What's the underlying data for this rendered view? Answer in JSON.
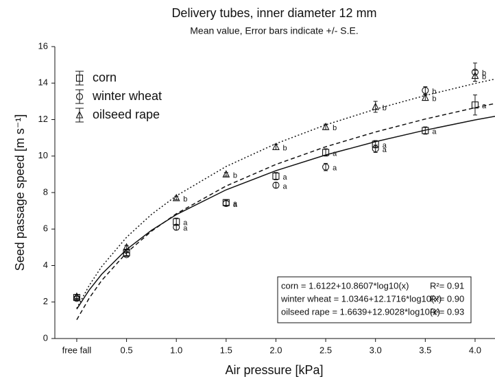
{
  "chart_data": {
    "type": "errorbar_scatter",
    "title": "Delivery tubes, inner diameter 12 mm",
    "subtitle": "Mean value, Error bars indicate +/- S.E.",
    "xlabel": "Air pressure [kPa]",
    "ylabel": "Seed passage speed [m s⁻¹]",
    "x": [
      1,
      2,
      3,
      4,
      5,
      6,
      7,
      8,
      9
    ],
    "xlim": [
      0.56,
      9.4
    ],
    "xticks": [
      {
        "value": 1,
        "label": "free fall"
      },
      {
        "value": 2,
        "label": "0.5"
      },
      {
        "value": 3,
        "label": "1.0"
      },
      {
        "value": 4,
        "label": "1.5"
      },
      {
        "value": 5,
        "label": "2.0"
      },
      {
        "value": 6,
        "label": "2.5"
      },
      {
        "value": 7,
        "label": "3.0"
      },
      {
        "value": 8,
        "label": "3.5"
      },
      {
        "value": 9,
        "label": "4.0"
      }
    ],
    "ylim": [
      0,
      16
    ],
    "yticks": [
      0,
      2,
      4,
      6,
      8,
      10,
      12,
      14,
      16
    ],
    "fit_x": [
      1,
      1.25,
      1.5,
      2,
      2.5,
      3,
      4,
      5,
      6,
      7,
      8,
      9,
      9.4
    ],
    "series": [
      {
        "name": "corn",
        "marker": "square",
        "dash": "solid",
        "color": "#111111",
        "values": [
          2.25,
          4.7,
          6.4,
          7.45,
          8.9,
          10.2,
          10.65,
          11.4,
          12.8
        ],
        "errors": [
          0.15,
          0.15,
          0.2,
          0.15,
          0.2,
          0.2,
          0.2,
          0.2,
          0.55
        ],
        "letters": [
          null,
          null,
          "a",
          "a",
          "a",
          "a",
          "a",
          "a",
          "a"
        ],
        "fit": [
          1.61,
          2.66,
          3.52,
          4.88,
          5.93,
          6.79,
          8.15,
          9.2,
          10.06,
          10.79,
          11.42,
          11.98,
          12.18
        ]
      },
      {
        "name": "winter wheat",
        "marker": "circle",
        "dash": "dashed",
        "color": "#111111",
        "values": [
          2.2,
          4.6,
          6.1,
          7.4,
          8.4,
          9.4,
          10.4,
          13.6,
          14.6
        ],
        "errors": [
          0.1,
          0.1,
          0.15,
          0.15,
          0.15,
          0.2,
          0.2,
          0.2,
          0.5
        ],
        "letters": [
          null,
          null,
          "a",
          "a",
          "a",
          "a",
          "a",
          "b",
          "b"
        ],
        "fit": [
          1.03,
          2.21,
          3.18,
          4.7,
          5.88,
          6.84,
          8.36,
          9.54,
          10.51,
          11.32,
          12.03,
          12.65,
          12.88
        ]
      },
      {
        "name": "oilseed rape",
        "marker": "triangle",
        "dash": "dotted",
        "color": "#111111",
        "values": [
          2.3,
          5.0,
          7.7,
          9.0,
          10.5,
          11.6,
          12.7,
          13.2,
          14.4
        ],
        "errors": [
          0.1,
          0.1,
          0.1,
          0.1,
          0.15,
          0.15,
          0.3,
          0.15,
          0.3
        ],
        "letters": [
          null,
          null,
          "b",
          "b",
          "b",
          "b",
          "b",
          "b",
          "b"
        ],
        "fit": [
          1.66,
          2.91,
          3.94,
          5.55,
          6.8,
          7.82,
          9.43,
          10.68,
          11.71,
          12.57,
          13.32,
          13.98,
          14.22
        ]
      }
    ],
    "equations": [
      {
        "text": "corn = 1.6122+10.8607*log10(x)",
        "r2": "R²= 0.91"
      },
      {
        "text": "winter wheat = 1.0346+12.1716*log10(x)",
        "r2": "R²= 0.90"
      },
      {
        "text": "oilseed rape = 1.6639+12.9028*log10(x)",
        "r2": "R²= 0.93"
      }
    ],
    "legend": "upper left"
  }
}
